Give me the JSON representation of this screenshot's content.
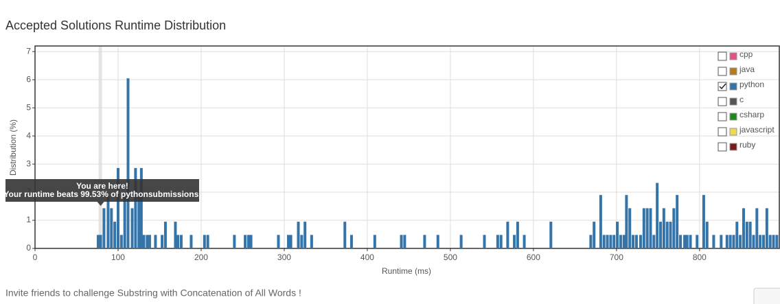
{
  "chart_data": {
    "type": "bar",
    "title": "Accepted Solutions Runtime Distribution",
    "x_label": "Runtime (ms)",
    "y_label": "Distribution (%)",
    "xlim": [
      0,
      896
    ],
    "xticks": [
      0,
      100,
      200,
      300,
      400,
      500,
      600,
      700,
      800
    ],
    "ylim": [
      0,
      7.2
    ],
    "yticks": [
      0,
      1,
      2,
      3,
      4,
      5,
      6,
      7
    ],
    "grid": true,
    "series": [
      {
        "name": "python",
        "color": "#3574a8",
        "x": [
          76,
          79,
          83,
          88,
          92,
          96,
          100,
          104,
          108,
          112,
          117,
          121,
          125,
          128,
          131,
          135,
          138,
          145,
          153,
          157,
          169,
          172,
          176,
          188,
          204,
          208,
          240,
          253,
          257,
          260,
          293,
          305,
          308,
          317,
          321,
          325,
          333,
          373,
          381,
          409,
          441,
          445,
          469,
          485,
          513,
          541,
          557,
          561,
          569,
          577,
          581,
          589,
          621,
          669,
          673,
          681,
          685,
          689,
          693,
          697,
          701,
          705,
          709,
          712,
          716,
          720,
          724,
          729,
          733,
          737,
          741,
          745,
          749,
          753,
          757,
          761,
          765,
          769,
          773,
          777,
          782,
          785,
          789,
          797,
          805,
          809,
          817,
          826,
          833,
          837,
          841,
          845,
          849,
          853,
          857,
          861,
          865,
          869,
          873,
          877,
          881,
          885,
          889,
          893
        ],
        "values": [
          0.48,
          0.48,
          1.43,
          1.9,
          1.43,
          0.95,
          2.86,
          0.48,
          1.9,
          6.05,
          1.43,
          2.86,
          1.9,
          2.86,
          0.48,
          0.48,
          0.48,
          0.48,
          0.48,
          0.95,
          0.95,
          0.48,
          0.48,
          0.48,
          0.48,
          0.48,
          0.48,
          0.48,
          0.48,
          0.48,
          0.48,
          0.48,
          0.48,
          0.95,
          0.48,
          0.95,
          0.48,
          0.95,
          0.48,
          0.48,
          0.48,
          0.48,
          0.48,
          0.48,
          0.48,
          0.48,
          0.48,
          0.48,
          0.95,
          0.48,
          0.95,
          0.48,
          0.95,
          0.48,
          0.95,
          1.9,
          0.48,
          0.48,
          0.48,
          0.48,
          0.95,
          0.48,
          0.48,
          1.9,
          1.43,
          0.48,
          0.48,
          0.48,
          1.43,
          1.43,
          1.43,
          0.48,
          2.33,
          0.95,
          1.43,
          0.95,
          0.95,
          1.43,
          1.9,
          0.48,
          0.48,
          0.48,
          0.48,
          0.48,
          1.9,
          0.95,
          0.48,
          0.48,
          0.48,
          0.48,
          0.48,
          0.95,
          0.48,
          1.43,
          0.95,
          0.95,
          0.48,
          1.43,
          0.48,
          0.48,
          1.43,
          0.48,
          0.48,
          0.48
        ]
      }
    ],
    "highlight_x": 79,
    "tooltip": {
      "title": "You are here!",
      "text": "Your runtime beats 99.53% of pythonsubmissions."
    },
    "legend": [
      {
        "name": "cpp",
        "color": "#e8508a",
        "checked": false
      },
      {
        "name": "java",
        "color": "#b57c1f",
        "checked": false
      },
      {
        "name": "python",
        "color": "#3574a8",
        "checked": true
      },
      {
        "name": "c",
        "color": "#555555",
        "checked": false
      },
      {
        "name": "csharp",
        "color": "#1e8a1e",
        "checked": false
      },
      {
        "name": "javascript",
        "color": "#f0d755",
        "checked": false
      },
      {
        "name": "ruby",
        "color": "#7a1a1a",
        "checked": false
      }
    ]
  },
  "footer": {
    "text": "Invite friends to challenge Substring with Concatenation of All Words !"
  }
}
